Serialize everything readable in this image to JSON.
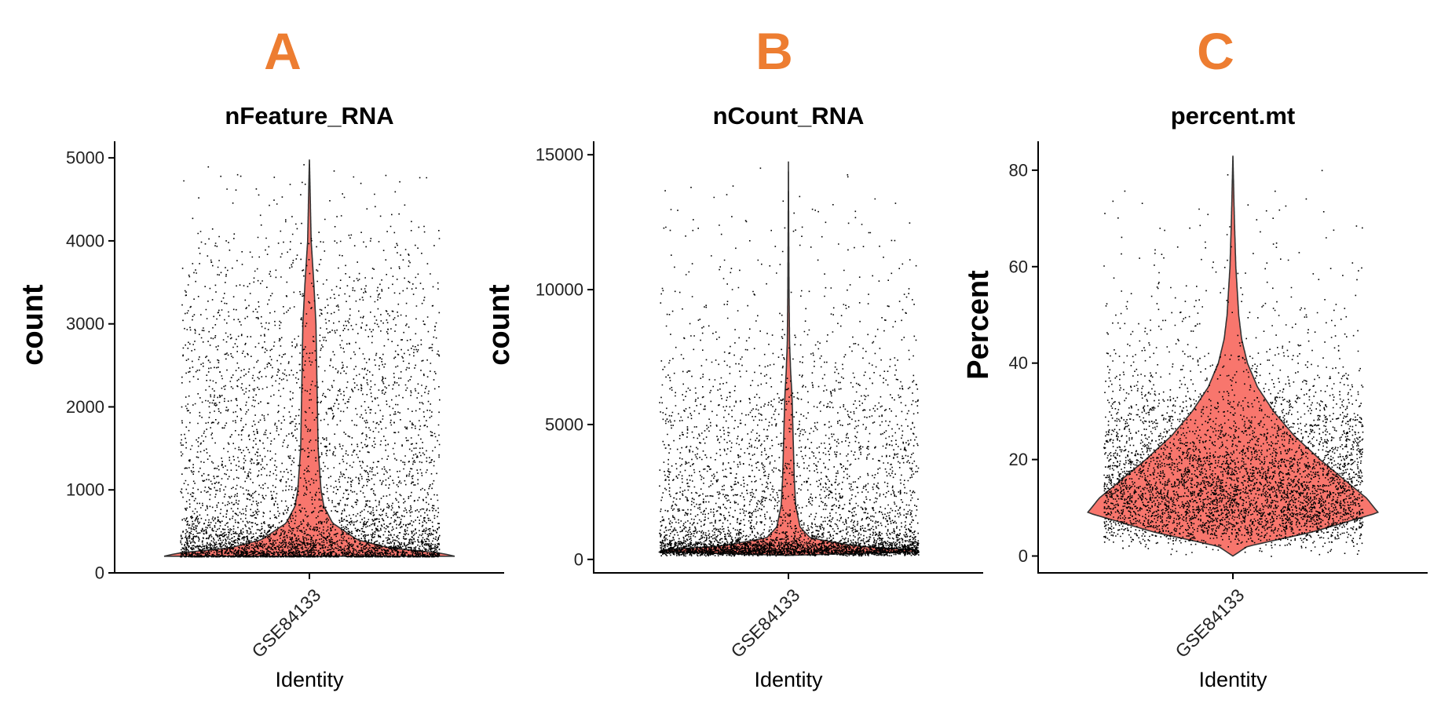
{
  "chart_data": [
    {
      "letter": "A",
      "type": "violin",
      "title": "nFeature_RNA",
      "ylabel": "count",
      "xlabel": "Identity",
      "category": "GSE84133",
      "ylim": [
        0,
        5200
      ],
      "yticks": [
        0,
        1000,
        2000,
        3000,
        4000,
        5000
      ],
      "fill_color": "#f8766d",
      "grid": false,
      "distribution": {
        "min": 200,
        "max": 4980,
        "median": 290,
        "q75": 420
      },
      "density_profile": [
        {
          "y": 200,
          "w": 1.0
        },
        {
          "y": 240,
          "w": 0.9
        },
        {
          "y": 300,
          "w": 0.55
        },
        {
          "y": 400,
          "w": 0.33
        },
        {
          "y": 600,
          "w": 0.16
        },
        {
          "y": 800,
          "w": 0.1
        },
        {
          "y": 1000,
          "w": 0.08
        },
        {
          "y": 1500,
          "w": 0.06
        },
        {
          "y": 2000,
          "w": 0.055
        },
        {
          "y": 2500,
          "w": 0.05
        },
        {
          "y": 3000,
          "w": 0.045
        },
        {
          "y": 3500,
          "w": 0.03
        },
        {
          "y": 4000,
          "w": 0.012
        },
        {
          "y": 4500,
          "w": 0.006
        },
        {
          "y": 4980,
          "w": 0.0
        }
      ]
    },
    {
      "letter": "B",
      "type": "violin",
      "title": "nCount_RNA",
      "ylabel": "count",
      "xlabel": "Identity",
      "category": "GSE84133",
      "ylim": [
        -500,
        15500
      ],
      "yticks": [
        0,
        5000,
        10000,
        15000
      ],
      "fill_color": "#f8766d",
      "grid": false,
      "distribution": {
        "min": 150,
        "max": 14750,
        "median": 450,
        "q75": 700
      },
      "density_profile": [
        {
          "y": 150,
          "w": 0.0
        },
        {
          "y": 300,
          "w": 1.0
        },
        {
          "y": 500,
          "w": 0.45
        },
        {
          "y": 800,
          "w": 0.15
        },
        {
          "y": 1200,
          "w": 0.08
        },
        {
          "y": 2000,
          "w": 0.05
        },
        {
          "y": 3000,
          "w": 0.04
        },
        {
          "y": 4000,
          "w": 0.035
        },
        {
          "y": 5000,
          "w": 0.03
        },
        {
          "y": 6000,
          "w": 0.025
        },
        {
          "y": 7000,
          "w": 0.015
        },
        {
          "y": 8000,
          "w": 0.008
        },
        {
          "y": 10000,
          "w": 0.004
        },
        {
          "y": 12000,
          "w": 0.002
        },
        {
          "y": 14750,
          "w": 0.0
        }
      ]
    },
    {
      "letter": "C",
      "type": "violin",
      "title": "percent.mt",
      "ylabel": "Percent",
      "xlabel": "Identity",
      "category": "GSE84133",
      "ylim": [
        -3.5,
        86
      ],
      "yticks": [
        0,
        20,
        40,
        60,
        80
      ],
      "fill_color": "#f8766d",
      "grid": false,
      "distribution": {
        "min": 0,
        "max": 83,
        "median": 13,
        "q75": 20
      },
      "density_profile": [
        {
          "y": 0,
          "w": 0.0
        },
        {
          "y": 2,
          "w": 0.1
        },
        {
          "y": 5,
          "w": 0.55
        },
        {
          "y": 9,
          "w": 1.0
        },
        {
          "y": 12,
          "w": 0.92
        },
        {
          "y": 16,
          "w": 0.76
        },
        {
          "y": 20,
          "w": 0.6
        },
        {
          "y": 25,
          "w": 0.42
        },
        {
          "y": 30,
          "w": 0.28
        },
        {
          "y": 35,
          "w": 0.17
        },
        {
          "y": 40,
          "w": 0.1
        },
        {
          "y": 45,
          "w": 0.06
        },
        {
          "y": 50,
          "w": 0.04
        },
        {
          "y": 60,
          "w": 0.02
        },
        {
          "y": 70,
          "w": 0.01
        },
        {
          "y": 83,
          "w": 0.0
        }
      ]
    }
  ]
}
